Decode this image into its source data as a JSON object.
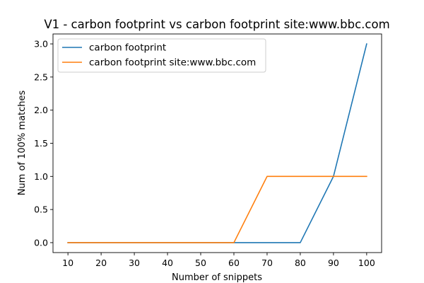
{
  "chart_data": {
    "type": "line",
    "title": "V1 - carbon footprint vs carbon footprint site:www.bbc.com",
    "xlabel": "Number of snippets",
    "ylabel": "Num of 100% matches",
    "x": [
      10,
      20,
      30,
      40,
      50,
      60,
      70,
      80,
      90,
      100
    ],
    "x_ticks": [
      "10",
      "20",
      "30",
      "40",
      "50",
      "60",
      "70",
      "80",
      "90",
      "100"
    ],
    "y_ticks": [
      "0.0",
      "0.5",
      "1.0",
      "1.5",
      "2.0",
      "2.5",
      "3.0"
    ],
    "xlim": [
      5.5,
      104.5
    ],
    "ylim": [
      -0.15,
      3.15
    ],
    "grid": false,
    "legend_position": "top-left",
    "series": [
      {
        "name": "carbon footprint",
        "color": "#1f77b4",
        "values": [
          0,
          0,
          0,
          0,
          0,
          0,
          0,
          0,
          1,
          3
        ]
      },
      {
        "name": "carbon footprint site:www.bbc.com",
        "color": "#ff7f0e",
        "values": [
          0,
          0,
          0,
          0,
          0,
          0,
          1,
          1,
          1,
          1
        ]
      }
    ]
  }
}
